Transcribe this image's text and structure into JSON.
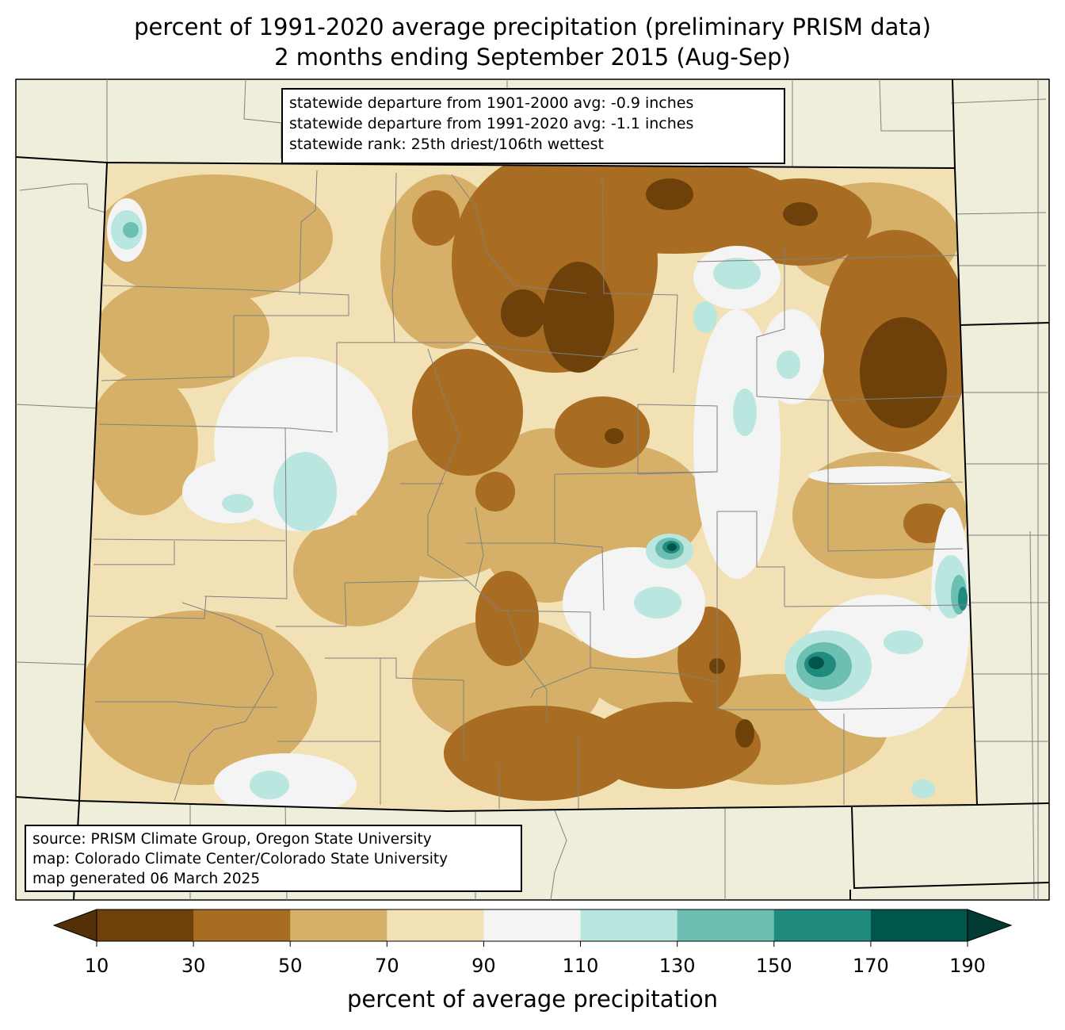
{
  "title": {
    "line1": "percent of 1991-2020 average precipitation (preliminary PRISM data)",
    "line2": "2 months ending September 2015 (Aug-Sep)"
  },
  "stats": {
    "line1": "statewide departure from 1901-2000 avg: -0.9 inches",
    "line2": "statewide departure from 1991-2020 avg: -1.1 inches",
    "line3": "statewide rank: 25th driest/106th wettest"
  },
  "source": {
    "line1": "source: PRISM Climate Group, Oregon State University",
    "line2": "map: Colorado Climate Center/Colorado State University",
    "line3": "map generated 06 March 2025"
  },
  "colorbar": {
    "label": "percent of average precipitation",
    "ticks": [
      "10",
      "30",
      "50",
      "70",
      "90",
      "110",
      "130",
      "150",
      "170",
      "190"
    ],
    "colors": [
      "#6e410b",
      "#a86d22",
      "#d6b068",
      "#f3e1b6",
      "#f3f4f3",
      "#bae6e0",
      "#6cbfb1",
      "#218a7f",
      "#00564a"
    ],
    "under_color": "#533008",
    "over_color": "#013b31"
  },
  "colors": {
    "background_land": "#efeedb",
    "county_lines": "#808080",
    "state_lines": "#000000"
  }
}
